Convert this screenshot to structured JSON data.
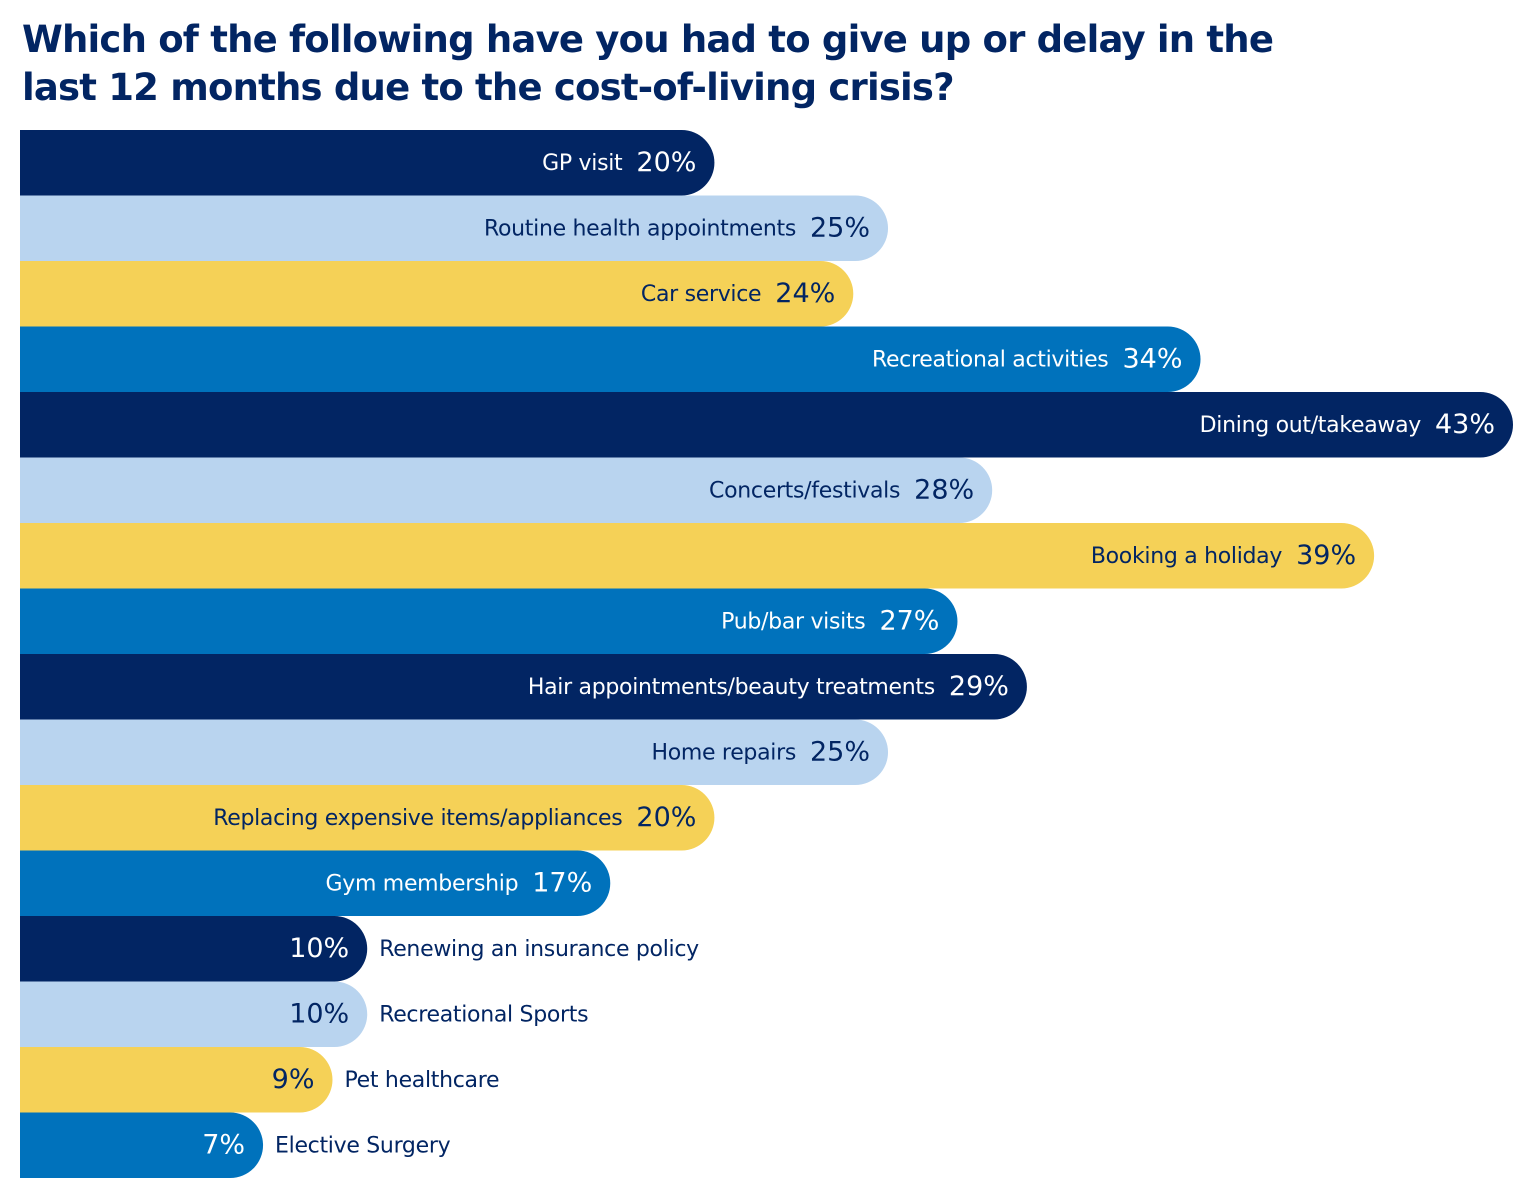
{
  "chart_data": {
    "type": "bar",
    "orientation": "horizontal",
    "title": "Which of the following have you had to give up or delay in the last 12 months due to the cost-of-living crisis?",
    "value_suffix": "%",
    "grid": false,
    "colors": [
      "#022563",
      "#b9d4ef",
      "#f5d157",
      "#0072bc"
    ],
    "categories": [
      "GP visit",
      "Routine  health appointments",
      "Car service",
      "Recreational activities",
      "Dining out/takeaway",
      "Concerts/festivals",
      "Booking a holiday",
      "Pub/bar visits",
      "Hair appointments/beauty treatments",
      "Home repairs",
      "Replacing expensive items/appliances",
      "Gym membership",
      "Renewing an insurance policy",
      "Recreational Sports",
      "Pet healthcare",
      "Elective Surgery"
    ],
    "values": [
      20,
      25,
      24,
      34,
      43,
      28,
      39,
      27,
      29,
      25,
      20,
      17,
      10,
      10,
      9,
      7
    ]
  }
}
